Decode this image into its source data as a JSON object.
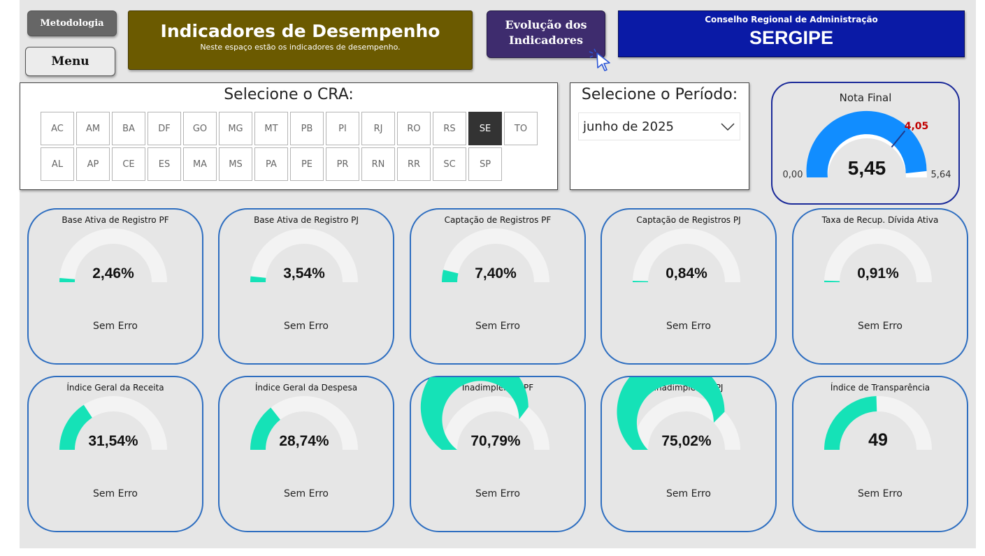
{
  "nav": {
    "metodologia_label": "Metodologia",
    "menu_label": "Menu",
    "evolucao_label_line1": "Evolução dos",
    "evolucao_label_line2": "Indicadores"
  },
  "header": {
    "title": "Indicadores de Desempenho",
    "subtitle": "Neste espaço estão os indicadores de desempenho."
  },
  "conselho": {
    "title": "Conselho Regional de Administração",
    "state": "SERGIPE"
  },
  "cra_selector": {
    "title": "Selecione o CRA:",
    "selected": "SE",
    "row1": [
      "AC",
      "AM",
      "BA",
      "DF",
      "GO",
      "MG",
      "MT",
      "PB",
      "PI",
      "RJ",
      "RO",
      "RS",
      "SE",
      "TO"
    ],
    "row2": [
      "AL",
      "AP",
      "CE",
      "ES",
      "MA",
      "MS",
      "PA",
      "PE",
      "PR",
      "RN",
      "RR",
      "SC",
      "SP"
    ]
  },
  "periodo": {
    "title": "Selecione o Período:",
    "value": "junho de 2025"
  },
  "nota_final": {
    "title": "Nota Final",
    "value": 5.45,
    "value_text": "5,45",
    "min_text": "0,00",
    "max_text": "5,64",
    "min": 0,
    "max": 5.64,
    "target": 4.05,
    "target_text": "4,05",
    "colors": {
      "fill": "#118dff",
      "track": "#ffffff",
      "target": "#1f3a8a",
      "target_text": "#c00000"
    }
  },
  "colors": {
    "gauge_fill": "#15e2b7",
    "gauge_track": "#f3f3f3",
    "card_border": "#2e6ec0"
  },
  "cards": [
    {
      "title": "Base Ativa de Registro PF",
      "value_text": "2,46%",
      "fraction": 0.0246,
      "status": "Sem Erro"
    },
    {
      "title": "Base Ativa de Registro PJ",
      "value_text": "3,54%",
      "fraction": 0.0354,
      "status": "Sem Erro"
    },
    {
      "title": "Captação de Registros PF",
      "value_text": "7,40%",
      "fraction": 0.074,
      "status": "Sem Erro"
    },
    {
      "title": "Captação de Registros PJ",
      "value_text": "0,84%",
      "fraction": 0.0084,
      "status": "Sem Erro"
    },
    {
      "title": "Taxa de Recup. Dívida Ativa",
      "value_text": "0,91%",
      "fraction": 0.0091,
      "status": "Sem Erro"
    },
    {
      "title": "Índice Geral da Receita",
      "value_text": "31,54%",
      "fraction": 0.3154,
      "status": "Sem Erro"
    },
    {
      "title": "Índice Geral da Despesa",
      "value_text": "28,74%",
      "fraction": 0.2874,
      "status": "Sem Erro"
    },
    {
      "title": "Inadimplência PF",
      "value_text": "70,79%",
      "fraction": 0.7079,
      "status": "Sem Erro"
    },
    {
      "title": "Inadimplência PJ",
      "value_text": "75,02%",
      "fraction": 0.7502,
      "status": "Sem Erro"
    },
    {
      "title": "Índice de Transparência",
      "value_text": "49",
      "fraction": 0.49,
      "status": "Sem Erro"
    }
  ]
}
